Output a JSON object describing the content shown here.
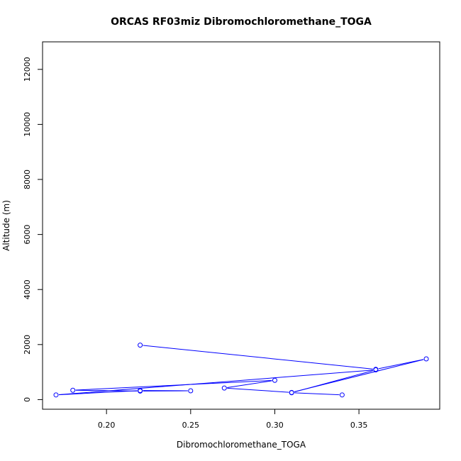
{
  "chart_data": {
    "type": "line",
    "title": "ORCAS RF03miz Dibromochloromethane_TOGA",
    "xlabel": "Dibromochloromethane_TOGA",
    "ylabel": "Altitude (m)",
    "xlim": [
      0.162,
      0.398
    ],
    "ylim": [
      -350,
      13000
    ],
    "x_ticks": [
      "0.20",
      "0.25",
      "0.30",
      "0.35"
    ],
    "y_ticks": [
      "0",
      "2000",
      "4000",
      "6000",
      "8000",
      "10000",
      "12000"
    ],
    "grid": false,
    "legend": "none",
    "colors": {
      "series": "#0000ff",
      "axes": "#000000"
    },
    "series": [
      {
        "x": [
          0.22,
          0.36,
          0.39,
          0.31,
          0.27,
          0.3,
          0.18,
          0.22,
          0.25,
          0.22,
          0.17,
          0.36,
          0.31,
          0.34
        ],
        "y": [
          1980,
          1100,
          1480,
          260,
          420,
          700,
          340,
          310,
          320,
          330,
          170,
          1080,
          250,
          170
        ]
      }
    ]
  }
}
